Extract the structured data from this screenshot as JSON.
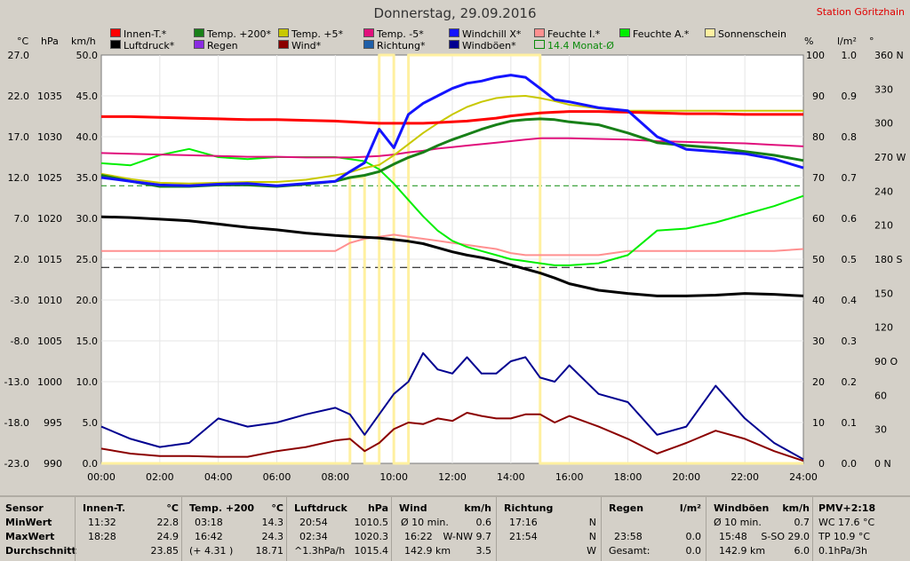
{
  "title": "Donnerstag, 29.09.2016",
  "station": "Station Göritzhain",
  "legend": [
    {
      "label": "Innen-T.*",
      "color": "#ff0000"
    },
    {
      "label": "Luftdruck*",
      "color": "#000000"
    },
    {
      "label": "Temp. +200*",
      "color": "#188018"
    },
    {
      "label": "Regen",
      "color": "#8a2be2"
    },
    {
      "label": "Temp. +5*",
      "color": "#c8c800"
    },
    {
      "label": "Wind*",
      "color": "#8b0000"
    },
    {
      "label": "Temp. -5*",
      "color": "#e0107c"
    },
    {
      "label": "Richtung*",
      "color": "#1f5fa8"
    },
    {
      "label": "Windchill X*",
      "color": "#1414ff"
    },
    {
      "label": "Windböen*",
      "color": "#000090"
    },
    {
      "label": "Feuchte I.*",
      "color": "#ff9090"
    },
    {
      "label": "14.4 Monat-Ø",
      "color": "#0a8a0a"
    },
    {
      "label": "Feuchte A.*",
      "color": "#00ee00"
    },
    {
      "label": "Sonnenschein",
      "color": "#fff0a0"
    }
  ],
  "units": {
    "c": "°C",
    "hpa": "hPa",
    "kmh": "km/h",
    "pct": "%",
    "lm2": "l/m²",
    "deg": "°"
  },
  "axes": {
    "temp": [
      "27.0",
      "22.0",
      "17.0",
      "12.0",
      "7.0",
      "2.0",
      "-3.0",
      "-8.0",
      "-13.0",
      "-18.0",
      "-23.0"
    ],
    "pressure": [
      "1035",
      "1030",
      "1025",
      "1020",
      "1015",
      "1010",
      "1005",
      "1000",
      "995",
      "990"
    ],
    "kmh": [
      "50.0",
      "45.0",
      "40.0",
      "35.0",
      "30.0",
      "25.0",
      "20.0",
      "15.0",
      "10.0",
      "5.0",
      "0.0"
    ],
    "pct": [
      "100",
      "90",
      "80",
      "70",
      "60",
      "50",
      "40",
      "30",
      "20",
      "10",
      "0"
    ],
    "rain": [
      "1.0",
      "0.9",
      "0.8",
      "0.7",
      "0.6",
      "0.5",
      "0.4",
      "0.3",
      "0.2",
      "0.1",
      "0.0"
    ],
    "dir": [
      "360 N",
      "330",
      "300",
      "270 W",
      "240",
      "210",
      "180 S",
      "150",
      "120",
      "90 O",
      "60",
      "30",
      "0 N"
    ],
    "time": [
      "00:00",
      "02:00",
      "04:00",
      "06:00",
      "08:00",
      "10:00",
      "12:00",
      "14:00",
      "16:00",
      "18:00",
      "20:00",
      "22:00",
      "24:00"
    ]
  },
  "chart_data": {
    "type": "line",
    "title": "Donnerstag, 29.09.2016",
    "x_range": [
      "00:00",
      "24:00"
    ],
    "ylim_kmh": [
      0,
      50
    ],
    "ylim_temp": [
      -23,
      32
    ],
    "ylim_hpa": [
      990,
      1040
    ],
    "ylim_pct": [
      0,
      100
    ],
    "grid": true,
    "x_hours": [
      0,
      1,
      2,
      3,
      4,
      5,
      6,
      7,
      8,
      8.5,
      9,
      9.5,
      10,
      10.5,
      11,
      11.5,
      12,
      12.5,
      13,
      13.5,
      14,
      14.5,
      15,
      15.5,
      16,
      17,
      18,
      19,
      20,
      21,
      22,
      23,
      24
    ],
    "series": [
      {
        "name": "Innen-T.*",
        "color": "#ff0000",
        "unit": "°C",
        "values": [
          23.7,
          23.7,
          23.6,
          23.5,
          23.4,
          23.3,
          23.3,
          23.2,
          23.1,
          23.0,
          22.9,
          22.8,
          22.8,
          22.8,
          22.8,
          22.9,
          23.0,
          23.1,
          23.3,
          23.5,
          23.8,
          24.0,
          24.2,
          24.3,
          24.4,
          24.4,
          24.3,
          24.2,
          24.1,
          24.1,
          24.0,
          24.0,
          24.0
        ]
      },
      {
        "name": "Luftdruck*",
        "color": "#000000",
        "unit": "hPa",
        "values": [
          1020.2,
          1020.1,
          1019.9,
          1019.7,
          1019.3,
          1018.9,
          1018.6,
          1018.2,
          1017.9,
          1017.8,
          1017.7,
          1017.6,
          1017.4,
          1017.2,
          1016.9,
          1016.4,
          1015.9,
          1015.5,
          1015.2,
          1014.8,
          1014.3,
          1013.8,
          1013.3,
          1012.7,
          1012.0,
          1011.2,
          1010.8,
          1010.5,
          1010.5,
          1010.6,
          1010.8,
          1010.7,
          1010.5
        ]
      },
      {
        "name": "Temp. +200*",
        "color": "#188018",
        "unit": "°C",
        "values": [
          15.8,
          15.0,
          14.3,
          14.3,
          14.5,
          14.5,
          14.3,
          14.6,
          15.0,
          15.5,
          15.8,
          16.3,
          17.3,
          18.2,
          18.9,
          19.8,
          20.6,
          21.3,
          22.0,
          22.6,
          23.1,
          23.3,
          23.4,
          23.3,
          23.0,
          22.6,
          21.5,
          20.2,
          19.8,
          19.5,
          19.0,
          18.5,
          17.8
        ]
      },
      {
        "name": "Temp. +5*",
        "color": "#c8c800",
        "unit": "°C",
        "values": [
          16.0,
          15.3,
          14.8,
          14.7,
          14.8,
          14.9,
          14.9,
          15.2,
          15.8,
          16.2,
          16.8,
          17.2,
          18.5,
          20.0,
          21.5,
          22.8,
          24.0,
          25.0,
          25.7,
          26.2,
          26.4,
          26.5,
          26.2,
          25.8,
          25.3,
          24.8,
          24.5,
          24.5,
          24.5,
          24.5,
          24.5,
          24.5,
          24.5
        ]
      },
      {
        "name": "Temp. -5*",
        "color": "#e0107c",
        "unit": "°C",
        "values": [
          18.8,
          18.7,
          18.6,
          18.5,
          18.4,
          18.3,
          18.3,
          18.2,
          18.2,
          18.2,
          18.3,
          18.4,
          18.6,
          18.9,
          19.1,
          19.4,
          19.6,
          19.8,
          20.0,
          20.2,
          20.4,
          20.6,
          20.8,
          20.8,
          20.8,
          20.7,
          20.6,
          20.4,
          20.3,
          20.2,
          20.1,
          19.9,
          19.7
        ]
      },
      {
        "name": "Windchill X*",
        "color": "#1414ff",
        "unit": "°C",
        "values": [
          15.5,
          15.0,
          14.5,
          14.4,
          14.6,
          14.7,
          14.4,
          14.7,
          15.0,
          16.3,
          17.5,
          22.0,
          19.5,
          24.0,
          25.5,
          26.5,
          27.5,
          28.2,
          28.5,
          29.0,
          29.3,
          29.0,
          27.5,
          26.0,
          25.7,
          24.9,
          24.5,
          21.0,
          19.3,
          19.0,
          18.7,
          18.0,
          16.8
        ]
      },
      {
        "name": "Feuchte I.*",
        "color": "#ff9090",
        "unit": "%",
        "values": [
          52.0,
          52.0,
          52.0,
          52.0,
          52.0,
          52.0,
          52.0,
          52.0,
          52.0,
          54.0,
          55.0,
          55.5,
          56.0,
          55.5,
          55.0,
          54.5,
          54.0,
          53.5,
          53.0,
          52.5,
          51.5,
          51.0,
          51.0,
          51.0,
          51.0,
          51.0,
          52.0,
          52.0,
          52.0,
          52.0,
          52.0,
          52.0,
          52.5
        ]
      },
      {
        "name": "Feuchte A.*",
        "color": "#00ee00",
        "unit": "%",
        "values": [
          73.5,
          73.0,
          75.5,
          77.0,
          75.0,
          74.5,
          75.0,
          75.0,
          75.0,
          74.5,
          74.0,
          72.0,
          68.5,
          64.5,
          60.5,
          57.0,
          54.5,
          53.0,
          52.0,
          51.0,
          50.0,
          49.5,
          49.0,
          48.5,
          48.5,
          49.0,
          51.0,
          57.0,
          57.5,
          59.0,
          61.0,
          63.0,
          65.5
        ]
      },
      {
        "name": "Wind*",
        "color": "#8b0000",
        "unit": "km/h",
        "values": [
          1.8,
          1.2,
          0.9,
          0.9,
          0.8,
          0.8,
          1.5,
          2.0,
          2.8,
          3.0,
          1.5,
          2.5,
          4.2,
          5.0,
          4.8,
          5.5,
          5.2,
          6.2,
          5.8,
          5.5,
          5.5,
          6.0,
          6.0,
          5.0,
          5.8,
          4.5,
          3.0,
          1.2,
          2.5,
          4.0,
          3.0,
          1.5,
          0.3
        ]
      },
      {
        "name": "Windböen*",
        "color": "#000090",
        "unit": "km/h",
        "values": [
          4.5,
          3.0,
          2.0,
          2.5,
          5.5,
          4.5,
          5.0,
          6.0,
          6.8,
          6.0,
          3.5,
          6.0,
          8.5,
          10.0,
          13.5,
          11.5,
          11.0,
          13.0,
          11.0,
          11.0,
          12.5,
          13.0,
          10.5,
          10.0,
          12.0,
          8.5,
          7.5,
          3.5,
          4.5,
          9.5,
          5.5,
          2.5,
          0.5
        ]
      },
      {
        "name": "Sonnenschein",
        "color": "#fff0a0",
        "unit": "%",
        "values": [
          0,
          0,
          0,
          0,
          0,
          0,
          0,
          0,
          0,
          70,
          0,
          100,
          0,
          100,
          100,
          100,
          100,
          100,
          100,
          100,
          100,
          100,
          0,
          0,
          0,
          0,
          0,
          0,
          0,
          0,
          0,
          0,
          0
        ]
      }
    ],
    "reference_lines": [
      {
        "name": "14.4 Monat-Ø",
        "axis": "temp",
        "value": 14.4
      }
    ]
  },
  "stats": {
    "sensor": {
      "header": "Sensor",
      "rows": [
        "MinWert",
        "MaxWert",
        "Durchschnitt"
      ]
    },
    "innen": {
      "header": "Innen-T.",
      "unit": "°C",
      "rows": [
        [
          "11:32",
          "22.8"
        ],
        [
          "18:28",
          "24.9"
        ],
        [
          "",
          "23.85"
        ]
      ]
    },
    "temp": {
      "header": "Temp. +200",
      "unit": "°C",
      "rows": [
        [
          "03:18",
          "14.3"
        ],
        [
          "16:42",
          "24.3"
        ],
        [
          "(+ 4.31 )",
          "18.71"
        ]
      ]
    },
    "druck": {
      "header": "Luftdruck",
      "unit": "hPa",
      "rows": [
        [
          "20:54",
          "1010.5"
        ],
        [
          "02:34",
          "1020.3"
        ],
        [
          "^1.3hPa/h",
          "1015.4"
        ]
      ]
    },
    "wind": {
      "header": "Wind",
      "unit": "km/h",
      "rows": [
        [
          "Ø 10 min.",
          "0.6"
        ],
        [
          "16:22",
          "W-NW 9.7"
        ],
        [
          "142.9 km",
          "3.5"
        ]
      ]
    },
    "richtung": {
      "header": "Richtung",
      "rows": [
        [
          "17:16",
          "N"
        ],
        [
          "21:54",
          "N"
        ],
        [
          "",
          "W"
        ]
      ]
    },
    "regen": {
      "header": "Regen",
      "unit": "l/m²",
      "rows": [
        [
          "",
          ""
        ],
        [
          "23:58",
          "0.0"
        ],
        [
          "Gesamt:",
          "0.0"
        ]
      ]
    },
    "boeen": {
      "header": "Windböen",
      "unit": "km/h",
      "rows": [
        [
          "Ø 10 min.",
          "0.7"
        ],
        [
          "15:48",
          "S-SO 29.0"
        ],
        [
          "142.9 km",
          "6.0"
        ]
      ]
    },
    "pmv": {
      "header": "PMV+2:18",
      "rows": [
        "WC 17.6 °C",
        "TP 10.9 °C",
        "0.1hPa/3h"
      ]
    }
  }
}
